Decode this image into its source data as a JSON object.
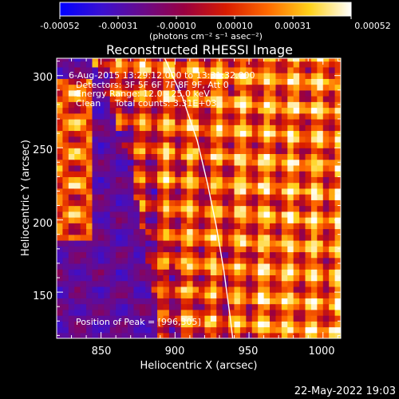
{
  "chart_data": {
    "type": "heatmap",
    "title": "Reconstructed RHESSI Image",
    "xlabel": "Heliocentric X (arcsec)",
    "ylabel": "Heliocentric Y (arcsec)",
    "xlim": [
      820,
      1012
    ],
    "ylim": [
      118,
      312
    ],
    "x_ticks": [
      850,
      900,
      950,
      1000
    ],
    "y_ticks": [
      150,
      200,
      250,
      300
    ],
    "colorbar": {
      "ticks": [
        "-0.00052",
        "-0.00031",
        "-0.00010",
        "0.00010",
        "0.00031",
        "0.00052"
      ],
      "units_label": "(photons cm⁻² s⁻¹ asec⁻²)",
      "stops": [
        "#0000ff",
        "#3a10d0",
        "#6a0a8a",
        "#9a0040",
        "#d81c00",
        "#ff6a00",
        "#ffd21a",
        "#ffffff"
      ]
    },
    "annotations": {
      "time": "6-Aug-2015 13:29:12.000 to 13:31:32.000",
      "detectors": "Detectors: 3F 5F 6F 7F 8F 9F, Att 0",
      "energy": "Energy Range: 12.0 - 25.0 keV",
      "clean": "Clean     Total counts: 3.31E+03",
      "peak": "Position of Peak = [996,305]"
    },
    "peak_position": [
      996,
      305
    ],
    "limb_curve": [
      [
        893,
        312
      ],
      [
        905,
        285
      ],
      [
        915,
        255
      ],
      [
        922,
        225
      ],
      [
        928,
        195
      ],
      [
        933,
        165
      ],
      [
        937,
        135
      ],
      [
        939,
        118
      ]
    ]
  },
  "footer": {
    "date": "22-May-2022 19:03"
  }
}
